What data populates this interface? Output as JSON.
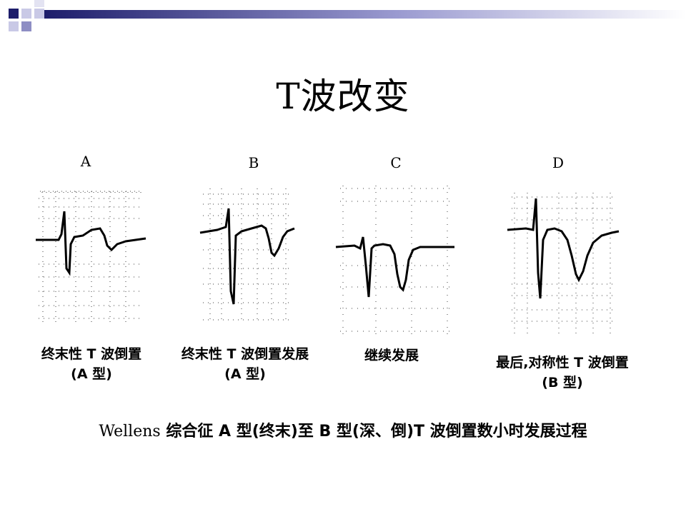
{
  "slide": {
    "title": "T波改变",
    "decoration_colors": [
      "#1d1d6b",
      "#8e8ec4",
      "#c9c9e6"
    ]
  },
  "panels": [
    {
      "letter": "A",
      "caption_line1": "终末性 T 波倒置",
      "caption_line2": "(A 型)"
    },
    {
      "letter": "B",
      "caption_line1": "终末性 T 波倒置发展",
      "caption_line2": "(A 型)"
    },
    {
      "letter": "C",
      "caption_line1": "继续发展",
      "caption_line2": ""
    },
    {
      "letter": "D",
      "caption_line1": "最后,对称性 T 波倒置",
      "caption_line2": "(B 型)"
    }
  ],
  "footer": {
    "latin": "Wellens",
    "text": " 综合征 A 型(终末)至 B 型(深、倒)T 波倒置数小时发展过程"
  }
}
